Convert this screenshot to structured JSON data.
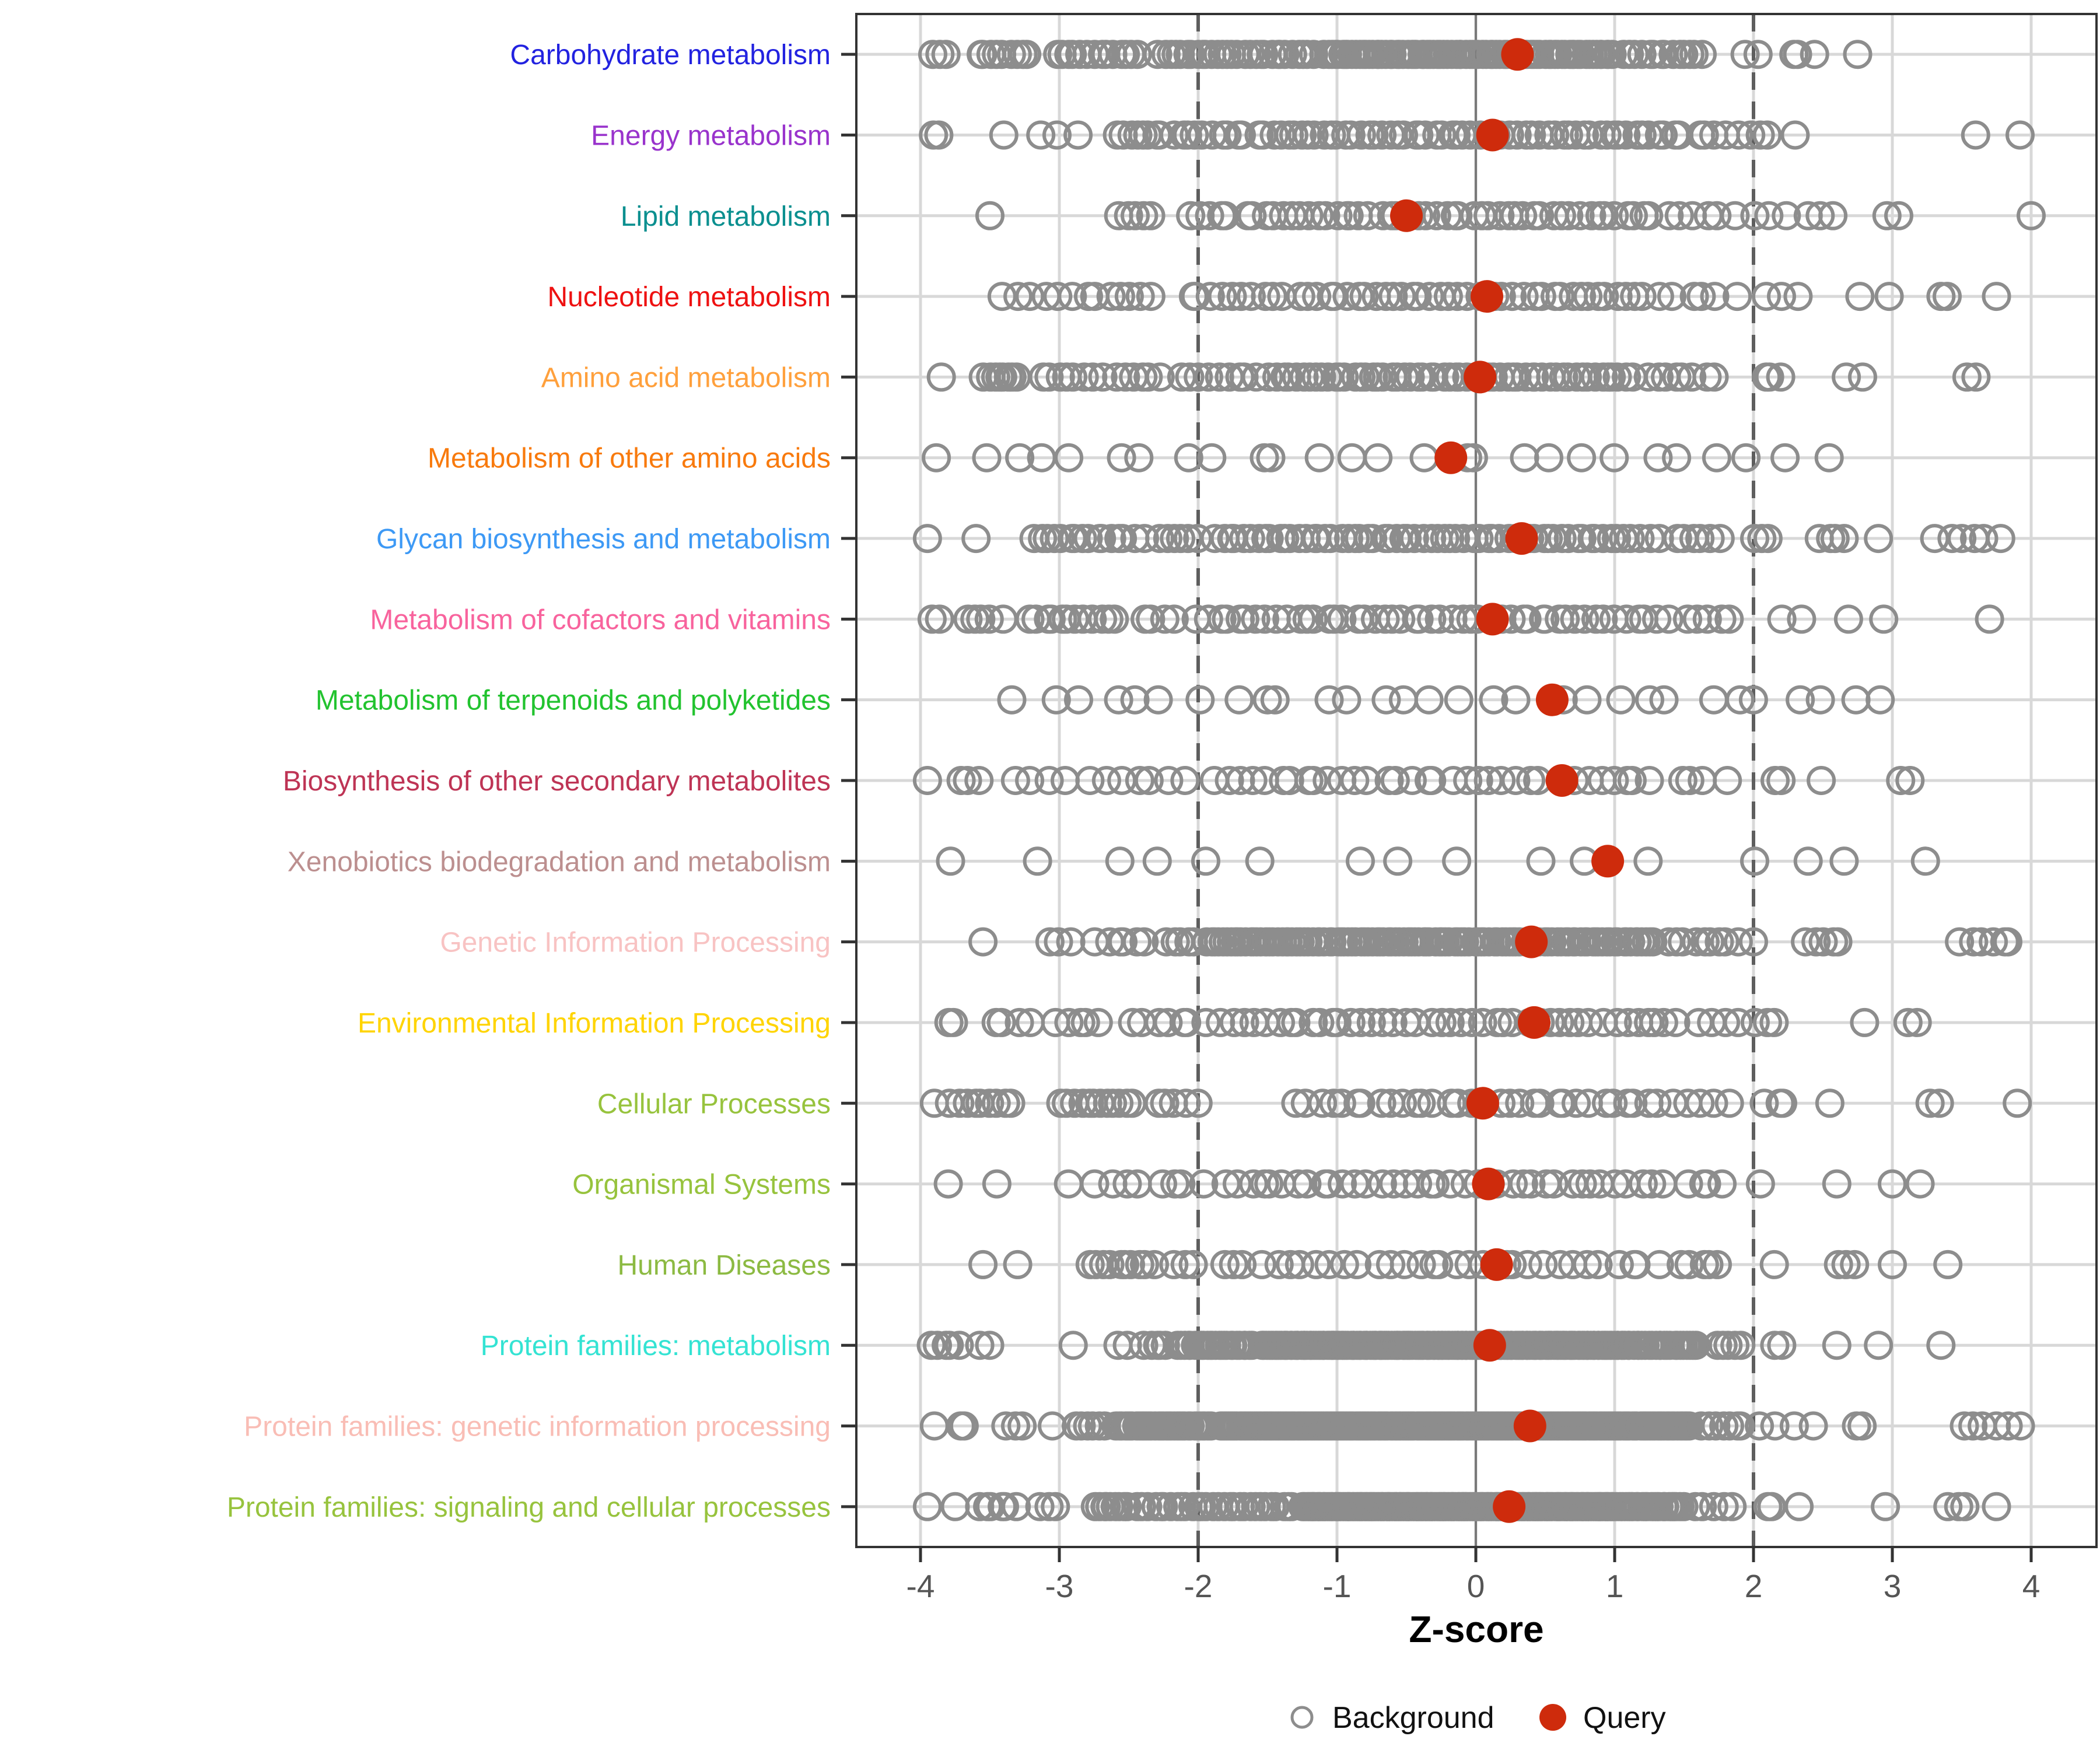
{
  "chart_data": {
    "type": "scatter",
    "variant": "strip-plot",
    "title": "",
    "xlabel": "Z-score",
    "ylabel": "",
    "xlim": [
      -4.45,
      4.45
    ],
    "x_ticks": [
      -4,
      -3,
      -2,
      -1,
      0,
      1,
      2,
      3,
      4
    ],
    "grid": "major-on",
    "reference_lines": {
      "zero": 0,
      "dashed_thresholds": [
        -2,
        2
      ]
    },
    "legend_position": "bottom",
    "legend": [
      {
        "label": "Background",
        "marker": "open-circle",
        "color": "#8D8D8D"
      },
      {
        "label": "Query",
        "marker": "filled-circle",
        "color": "#CE2B0C"
      }
    ],
    "colors": {
      "background_stroke": "#8D8D8D",
      "query_fill": "#CE2B0C",
      "grid_line": "#D8D8D8",
      "zero_line": "#7A7A7A",
      "threshold_line": "#5E5E5E",
      "panel_border": "#333333",
      "tick_color": "#333333",
      "tick_label_color": "#555555"
    },
    "categories": [
      {
        "label": "Carbohydrate metabolism",
        "color": "#2222E0",
        "query_z": 0.3,
        "background_segments": [
          [
            -3.95,
            -3.8,
            3
          ],
          [
            -3.6,
            -3.2,
            9
          ],
          [
            -3.05,
            -2.4,
            14
          ],
          [
            -2.3,
            -1.15,
            30
          ],
          [
            -1.1,
            1.0,
            85
          ],
          [
            1.05,
            1.65,
            14
          ],
          [
            1.9,
            2.05,
            2
          ],
          [
            2.2,
            2.5,
            3
          ],
          [
            2.75,
            2.75,
            1
          ]
        ]
      },
      {
        "label": "Energy metabolism",
        "color": "#9933CC",
        "query_z": 0.12,
        "background_segments": [
          [
            -3.95,
            -3.85,
            2
          ],
          [
            -3.4,
            -3.4,
            1
          ],
          [
            -3.15,
            -2.85,
            3
          ],
          [
            -2.6,
            -2.25,
            8
          ],
          [
            -2.2,
            -1.65,
            10
          ],
          [
            -1.6,
            1.5,
            58
          ],
          [
            1.55,
            2.15,
            8
          ],
          [
            2.3,
            2.35,
            1
          ],
          [
            3.6,
            3.6,
            1
          ],
          [
            3.92,
            3.92,
            1
          ]
        ]
      },
      {
        "label": "Lipid metabolism",
        "color": "#0A8F8F",
        "query_z": -0.5,
        "background_segments": [
          [
            -3.5,
            -3.5,
            1
          ],
          [
            -2.6,
            -2.3,
            5
          ],
          [
            -2.1,
            -1.75,
            5
          ],
          [
            -1.7,
            1.3,
            46
          ],
          [
            1.35,
            1.9,
            6
          ],
          [
            2.0,
            2.6,
            6
          ],
          [
            2.95,
            3.05,
            2
          ],
          [
            4.0,
            4.0,
            1
          ]
        ]
      },
      {
        "label": "Nucleotide metabolism",
        "color": "#EE1111",
        "query_z": 0.08,
        "background_segments": [
          [
            -3.45,
            -2.9,
            6
          ],
          [
            -2.85,
            -2.3,
            7
          ],
          [
            -2.1,
            -1.35,
            10
          ],
          [
            -1.3,
            1.25,
            38
          ],
          [
            1.3,
            1.9,
            6
          ],
          [
            2.0,
            2.35,
            3
          ],
          [
            2.7,
            3.0,
            2
          ],
          [
            3.3,
            3.45,
            2
          ],
          [
            3.75,
            3.75,
            1
          ]
        ]
      },
      {
        "label": "Amino acid metabolism",
        "color": "#FFA03C",
        "query_z": 0.03,
        "background_segments": [
          [
            -3.85,
            -3.85,
            1
          ],
          [
            -3.55,
            -3.3,
            8
          ],
          [
            -3.15,
            -2.75,
            7
          ],
          [
            -2.7,
            -2.25,
            7
          ],
          [
            -2.15,
            -1.55,
            9
          ],
          [
            -1.5,
            1.15,
            58
          ],
          [
            1.2,
            1.75,
            8
          ],
          [
            2.05,
            2.2,
            3
          ],
          [
            2.6,
            2.9,
            2
          ],
          [
            3.45,
            3.7,
            2
          ]
        ]
      },
      {
        "label": "Metabolism of other amino acids",
        "color": "#F87A0D",
        "query_z": -0.18,
        "background_segments": [
          [
            -3.95,
            2.65,
            27
          ]
        ]
      },
      {
        "label": "Glycan biosynthesis and metabolism",
        "color": "#3D99F5",
        "query_z": 0.33,
        "background_segments": [
          [
            -3.95,
            -3.95,
            1
          ],
          [
            -3.6,
            -3.6,
            1
          ],
          [
            -3.2,
            -2.45,
            15
          ],
          [
            -2.4,
            -1.95,
            7
          ],
          [
            -1.9,
            1.2,
            62
          ],
          [
            1.25,
            1.8,
            8
          ],
          [
            2.0,
            2.15,
            3
          ],
          [
            2.45,
            2.7,
            4
          ],
          [
            2.9,
            2.9,
            1
          ],
          [
            3.3,
            3.8,
            6
          ]
        ]
      },
      {
        "label": "Metabolism of cofactors and vitamins",
        "color": "#F8639D",
        "query_z": 0.12,
        "background_segments": [
          [
            -3.95,
            -3.85,
            2
          ],
          [
            -3.7,
            -3.4,
            5
          ],
          [
            -3.25,
            -2.55,
            12
          ],
          [
            -2.45,
            -2.0,
            5
          ],
          [
            -1.95,
            1.4,
            48
          ],
          [
            1.45,
            1.9,
            5
          ],
          [
            2.2,
            2.35,
            2
          ],
          [
            2.65,
            2.95,
            2
          ],
          [
            3.7,
            3.7,
            1
          ]
        ]
      },
      {
        "label": "Metabolism of terpenoids and polyketides",
        "color": "#22C32F",
        "query_z": 0.55,
        "background_segments": [
          [
            -3.4,
            3.05,
            30
          ]
        ]
      },
      {
        "label": "Biosynthesis of other secondary metabolites",
        "color": "#BE3455",
        "query_z": 0.62,
        "background_segments": [
          [
            -3.95,
            -3.95,
            1
          ],
          [
            -3.75,
            -3.5,
            3
          ],
          [
            -3.35,
            -2.0,
            11
          ],
          [
            -1.95,
            1.3,
            34
          ],
          [
            1.4,
            1.85,
            4
          ],
          [
            2.0,
            2.5,
            3
          ],
          [
            3.05,
            3.15,
            2
          ]
        ]
      },
      {
        "label": "Xenobiotics biodegradation and metabolism",
        "color": "#BC8F8F",
        "query_z": 0.95,
        "background_segments": [
          [
            -3.9,
            3.4,
            16
          ]
        ]
      },
      {
        "label": "Genetic Information Processing",
        "color": "#F8C3C3",
        "query_z": 0.4,
        "background_segments": [
          [
            -3.55,
            -3.55,
            1
          ],
          [
            -3.1,
            -2.9,
            3
          ],
          [
            -2.75,
            -2.35,
            6
          ],
          [
            -2.25,
            -2.0,
            5
          ],
          [
            -1.95,
            1.3,
            115
          ],
          [
            1.35,
            1.9,
            9
          ],
          [
            2.0,
            2.05,
            1
          ],
          [
            2.35,
            2.65,
            5
          ],
          [
            3.45,
            3.9,
            6
          ]
        ]
      },
      {
        "label": "Environmental Information Processing",
        "color": "#FFD400",
        "query_z": 0.42,
        "background_segments": [
          [
            -3.8,
            -3.75,
            2
          ],
          [
            -3.5,
            -3.2,
            4
          ],
          [
            -3.05,
            -2.7,
            5
          ],
          [
            -2.55,
            -2.0,
            6
          ],
          [
            -1.95,
            1.5,
            44
          ],
          [
            1.6,
            1.9,
            4
          ],
          [
            2.0,
            2.2,
            3
          ],
          [
            2.8,
            2.8,
            1
          ],
          [
            3.1,
            3.2,
            2
          ]
        ]
      },
      {
        "label": "Cellular Processes",
        "color": "#97C33D",
        "query_z": 0.05,
        "background_segments": [
          [
            -3.9,
            -3.9,
            1
          ],
          [
            -3.8,
            -3.3,
            9
          ],
          [
            -3.0,
            -2.45,
            12
          ],
          [
            -2.35,
            -1.95,
            5
          ],
          [
            -1.35,
            1.55,
            34
          ],
          [
            1.6,
            1.85,
            3
          ],
          [
            2.0,
            2.3,
            3
          ],
          [
            2.55,
            2.6,
            1
          ],
          [
            3.25,
            3.35,
            2
          ],
          [
            3.9,
            3.9,
            1
          ]
        ]
      },
      {
        "label": "Organismal Systems",
        "color": "#97C33D",
        "query_z": 0.09,
        "background_segments": [
          [
            -3.8,
            -3.8,
            1
          ],
          [
            -3.45,
            -3.45,
            1
          ],
          [
            -2.95,
            -1.9,
            9
          ],
          [
            -1.85,
            1.4,
            38
          ],
          [
            1.5,
            1.8,
            4
          ],
          [
            2.05,
            2.05,
            1
          ],
          [
            2.6,
            2.65,
            1
          ],
          [
            3.0,
            3.0,
            1
          ],
          [
            3.2,
            3.25,
            1
          ]
        ]
      },
      {
        "label": "Human Diseases",
        "color": "#8CBA42",
        "query_z": 0.15,
        "background_segments": [
          [
            -3.55,
            -3.55,
            1
          ],
          [
            -3.3,
            -3.3,
            1
          ],
          [
            -2.8,
            -2.3,
            10
          ],
          [
            -2.2,
            -2.0,
            3
          ],
          [
            -1.9,
            1.35,
            32
          ],
          [
            1.45,
            1.8,
            5
          ],
          [
            2.15,
            2.2,
            1
          ],
          [
            2.55,
            2.75,
            3
          ],
          [
            3.0,
            3.0,
            1
          ],
          [
            3.4,
            3.4,
            1
          ]
        ]
      },
      {
        "label": "Protein families: metabolism",
        "color": "#34E3D3",
        "query_z": 0.1,
        "background_segments": [
          [
            -3.95,
            -3.7,
            5
          ],
          [
            -3.6,
            -3.45,
            2
          ],
          [
            -2.9,
            -2.9,
            1
          ],
          [
            -2.6,
            -2.45,
            2
          ],
          [
            -2.4,
            -2.2,
            5
          ],
          [
            -2.15,
            -1.6,
            25
          ],
          [
            -1.55,
            1.1,
            170
          ],
          [
            1.1,
            1.6,
            22
          ],
          [
            1.7,
            1.95,
            5
          ],
          [
            2.15,
            2.25,
            2
          ],
          [
            2.6,
            2.6,
            1
          ],
          [
            2.9,
            2.9,
            1
          ],
          [
            3.35,
            3.35,
            1
          ]
        ]
      },
      {
        "label": "Protein families: genetic information processing",
        "color": "#F9BDB5",
        "query_z": 0.39,
        "background_segments": [
          [
            -3.9,
            -3.9,
            1
          ],
          [
            -3.75,
            -3.65,
            2
          ],
          [
            -3.4,
            -3.25,
            3
          ],
          [
            -3.05,
            -3.05,
            1
          ],
          [
            -2.9,
            -2.65,
            6
          ],
          [
            -2.6,
            -1.9,
            35
          ],
          [
            -1.85,
            1.1,
            190
          ],
          [
            1.1,
            1.55,
            25
          ],
          [
            1.6,
            1.95,
            7
          ],
          [
            2.0,
            2.45,
            4
          ],
          [
            2.7,
            2.8,
            2
          ],
          [
            3.45,
            3.95,
            6
          ]
        ]
      },
      {
        "label": "Protein families: signaling and cellular processes",
        "color": "#97C33D",
        "query_z": 0.24,
        "background_segments": [
          [
            -3.95,
            -3.95,
            1
          ],
          [
            -3.75,
            -3.75,
            1
          ],
          [
            -3.6,
            -3.3,
            6
          ],
          [
            -3.2,
            -3.0,
            3
          ],
          [
            -2.75,
            -2.5,
            9
          ],
          [
            -2.45,
            -1.3,
            30
          ],
          [
            -1.25,
            1.0,
            160
          ],
          [
            1.0,
            1.5,
            24
          ],
          [
            1.55,
            1.9,
            5
          ],
          [
            2.0,
            2.35,
            3
          ],
          [
            2.95,
            3.0,
            1
          ],
          [
            3.35,
            3.55,
            3
          ],
          [
            3.75,
            3.75,
            1
          ]
        ]
      }
    ]
  }
}
